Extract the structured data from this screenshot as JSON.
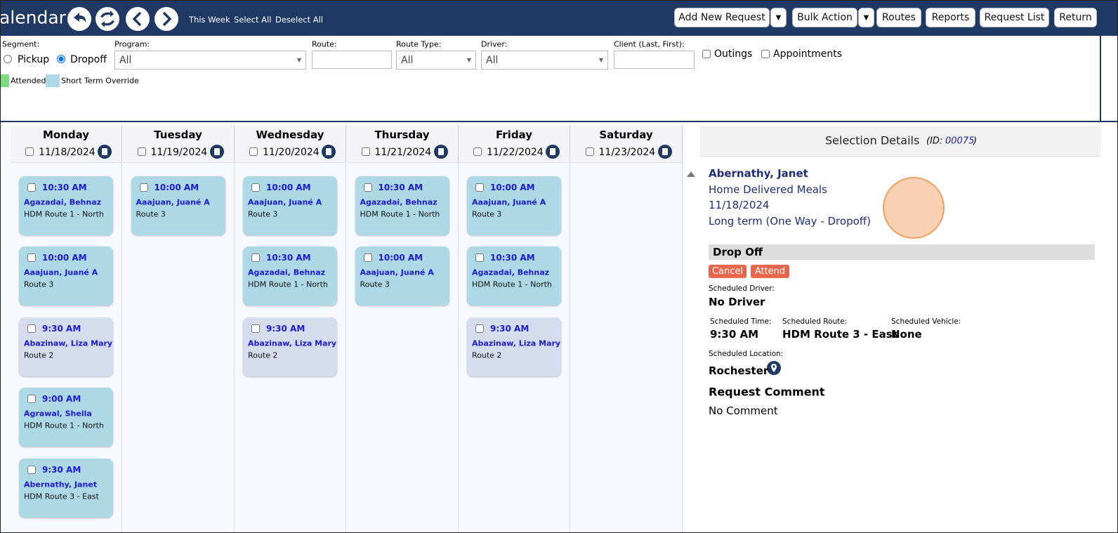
{
  "header": {
    "title": "alendar",
    "links": [
      "This Week",
      "Select All",
      "Deselect All"
    ],
    "buttons": [
      "Add New Request",
      "Bulk Action",
      "Routes",
      "Reports",
      "Request List",
      "Return"
    ]
  },
  "filters": {
    "segment_label": "Segment:",
    "segment_options": [
      "Pickup",
      "Dropoff"
    ],
    "program_label": "Program:",
    "program_value": "All",
    "route_label": "Route:",
    "route_type_label": "Route Type:",
    "route_type_value": "All",
    "driver_label": "Driver:",
    "driver_value": "All",
    "client_label": "Client (Last, First):",
    "checkboxes": [
      "Outings",
      "Appointments"
    ]
  },
  "legend": [
    {
      "label": "Attended",
      "color": "#7ddc7d"
    },
    {
      "label": "Short Term Override",
      "color": "#add8e6"
    }
  ],
  "days": [
    {
      "name": "Monday",
      "date": "11/18/2024",
      "requests": [
        {
          "time": "10:30 AM",
          "client": "Agazadai, Behnaz",
          "route": "HDM Route 1 - North",
          "color": "#add8e6"
        },
        {
          "time": "10:00 AM",
          "client": "Aaajuan, Juané A",
          "route": "Route 3",
          "color": "#add8e6"
        },
        {
          "time": "9:30 AM",
          "client": "Abazinaw, Liza Mary",
          "route": "Route 2",
          "color": "#d5dcee"
        },
        {
          "time": "9:00 AM",
          "client": "Agrawal, Sheila",
          "route": "HDM Route 1 - North",
          "color": "#add8e6"
        },
        {
          "time": "9:30 AM",
          "client": "Abernathy, Janet",
          "route": "HDM Route 3 - East",
          "color": "#add8e6"
        }
      ]
    },
    {
      "name": "Tuesday",
      "date": "11/19/2024",
      "requests": [
        {
          "time": "10:00 AM",
          "client": "Aaajuan, Juané A",
          "route": "Route 3",
          "color": "#add8e6"
        }
      ]
    },
    {
      "name": "Wednesday",
      "date": "11/20/2024",
      "requests": [
        {
          "time": "10:00 AM",
          "client": "Aaajuan, Juané A",
          "route": "Route 3",
          "color": "#add8e6"
        },
        {
          "time": "10:30 AM",
          "client": "Agazadai, Behnaz",
          "route": "HDM Route 1 - North",
          "color": "#add8e6"
        },
        {
          "time": "9:30 AM",
          "client": "Abazinaw, Liza Mary",
          "route": "Route 2",
          "color": "#d5dcee"
        }
      ]
    },
    {
      "name": "Thursday",
      "date": "11/21/2024",
      "requests": [
        {
          "time": "10:30 AM",
          "client": "Agazadai, Behnaz",
          "route": "HDM Route 1 - North",
          "color": "#add8e6"
        },
        {
          "time": "10:00 AM",
          "client": "Aaajuan, Juané A",
          "route": "Route 3",
          "color": "#add8e6"
        }
      ]
    },
    {
      "name": "Friday",
      "date": "11/22/2024",
      "requests": [
        {
          "time": "10:00 AM",
          "client": "Aaajuan, Juané A",
          "route": "Route 3",
          "color": "#add8e6"
        },
        {
          "time": "10:30 AM",
          "client": "Agazadai, Behnaz",
          "route": "HDM Route 1 - North",
          "color": "#add8e6"
        },
        {
          "time": "9:30 AM",
          "client": "Abazinaw, Liza Mary",
          "route": "Route 2",
          "color": "#d5dcee"
        }
      ]
    },
    {
      "name": "Saturday",
      "date": "11/23/2024",
      "requests": []
    }
  ],
  "details": {
    "title": "Selection Details",
    "id_prefix": "(ID:",
    "id": "00075",
    "id_suffix": ")",
    "client": "Abernathy, Janet",
    "program": "Home Delivered Meals",
    "date": "11/18/2024",
    "type": "Long term (One Way - Dropoff)",
    "section": "Drop Off",
    "buttons": [
      "Cancel",
      "Attend"
    ],
    "driver_label": "Scheduled Driver:",
    "driver": "No Driver",
    "time_label": "Scheduled Time:",
    "time": "9:30 AM",
    "route_label": "Scheduled Route:",
    "route": "HDM Route 3 - East",
    "vehicle_label": "Scheduled Vehicle:",
    "vehicle": "None",
    "location_label": "Scheduled Location:",
    "location": "Rochester",
    "comment_label": "Request Comment",
    "comment": "No Comment"
  }
}
